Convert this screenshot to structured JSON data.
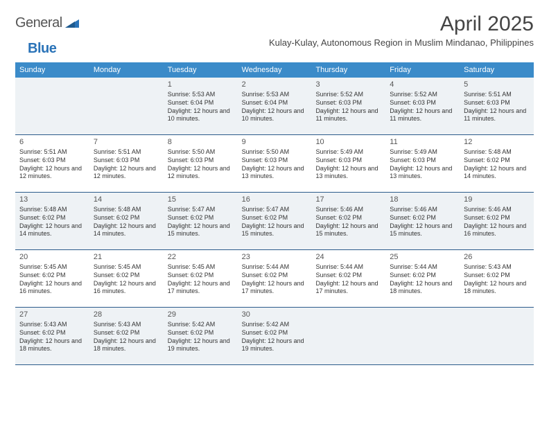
{
  "logo": {
    "word1": "General",
    "word2": "Blue"
  },
  "title": "April 2025",
  "location": "Kulay-Kulay, Autonomous Region in Muslim Mindanao, Philippines",
  "colors": {
    "header_bg": "#3b8bc9",
    "row_border": "#2a5a8a",
    "shaded_bg": "#eef2f5",
    "logo_accent": "#2a73b8"
  },
  "weekdays": [
    "Sunday",
    "Monday",
    "Tuesday",
    "Wednesday",
    "Thursday",
    "Friday",
    "Saturday"
  ],
  "weeks": [
    [
      {
        "day": "",
        "sunrise": "",
        "sunset": "",
        "daylight": ""
      },
      {
        "day": "",
        "sunrise": "",
        "sunset": "",
        "daylight": ""
      },
      {
        "day": "1",
        "sunrise": "Sunrise: 5:53 AM",
        "sunset": "Sunset: 6:04 PM",
        "daylight": "Daylight: 12 hours and 10 minutes."
      },
      {
        "day": "2",
        "sunrise": "Sunrise: 5:53 AM",
        "sunset": "Sunset: 6:04 PM",
        "daylight": "Daylight: 12 hours and 10 minutes."
      },
      {
        "day": "3",
        "sunrise": "Sunrise: 5:52 AM",
        "sunset": "Sunset: 6:03 PM",
        "daylight": "Daylight: 12 hours and 11 minutes."
      },
      {
        "day": "4",
        "sunrise": "Sunrise: 5:52 AM",
        "sunset": "Sunset: 6:03 PM",
        "daylight": "Daylight: 12 hours and 11 minutes."
      },
      {
        "day": "5",
        "sunrise": "Sunrise: 5:51 AM",
        "sunset": "Sunset: 6:03 PM",
        "daylight": "Daylight: 12 hours and 11 minutes."
      }
    ],
    [
      {
        "day": "6",
        "sunrise": "Sunrise: 5:51 AM",
        "sunset": "Sunset: 6:03 PM",
        "daylight": "Daylight: 12 hours and 12 minutes."
      },
      {
        "day": "7",
        "sunrise": "Sunrise: 5:51 AM",
        "sunset": "Sunset: 6:03 PM",
        "daylight": "Daylight: 12 hours and 12 minutes."
      },
      {
        "day": "8",
        "sunrise": "Sunrise: 5:50 AM",
        "sunset": "Sunset: 6:03 PM",
        "daylight": "Daylight: 12 hours and 12 minutes."
      },
      {
        "day": "9",
        "sunrise": "Sunrise: 5:50 AM",
        "sunset": "Sunset: 6:03 PM",
        "daylight": "Daylight: 12 hours and 13 minutes."
      },
      {
        "day": "10",
        "sunrise": "Sunrise: 5:49 AM",
        "sunset": "Sunset: 6:03 PM",
        "daylight": "Daylight: 12 hours and 13 minutes."
      },
      {
        "day": "11",
        "sunrise": "Sunrise: 5:49 AM",
        "sunset": "Sunset: 6:03 PM",
        "daylight": "Daylight: 12 hours and 13 minutes."
      },
      {
        "day": "12",
        "sunrise": "Sunrise: 5:48 AM",
        "sunset": "Sunset: 6:02 PM",
        "daylight": "Daylight: 12 hours and 14 minutes."
      }
    ],
    [
      {
        "day": "13",
        "sunrise": "Sunrise: 5:48 AM",
        "sunset": "Sunset: 6:02 PM",
        "daylight": "Daylight: 12 hours and 14 minutes."
      },
      {
        "day": "14",
        "sunrise": "Sunrise: 5:48 AM",
        "sunset": "Sunset: 6:02 PM",
        "daylight": "Daylight: 12 hours and 14 minutes."
      },
      {
        "day": "15",
        "sunrise": "Sunrise: 5:47 AM",
        "sunset": "Sunset: 6:02 PM",
        "daylight": "Daylight: 12 hours and 15 minutes."
      },
      {
        "day": "16",
        "sunrise": "Sunrise: 5:47 AM",
        "sunset": "Sunset: 6:02 PM",
        "daylight": "Daylight: 12 hours and 15 minutes."
      },
      {
        "day": "17",
        "sunrise": "Sunrise: 5:46 AM",
        "sunset": "Sunset: 6:02 PM",
        "daylight": "Daylight: 12 hours and 15 minutes."
      },
      {
        "day": "18",
        "sunrise": "Sunrise: 5:46 AM",
        "sunset": "Sunset: 6:02 PM",
        "daylight": "Daylight: 12 hours and 15 minutes."
      },
      {
        "day": "19",
        "sunrise": "Sunrise: 5:46 AM",
        "sunset": "Sunset: 6:02 PM",
        "daylight": "Daylight: 12 hours and 16 minutes."
      }
    ],
    [
      {
        "day": "20",
        "sunrise": "Sunrise: 5:45 AM",
        "sunset": "Sunset: 6:02 PM",
        "daylight": "Daylight: 12 hours and 16 minutes."
      },
      {
        "day": "21",
        "sunrise": "Sunrise: 5:45 AM",
        "sunset": "Sunset: 6:02 PM",
        "daylight": "Daylight: 12 hours and 16 minutes."
      },
      {
        "day": "22",
        "sunrise": "Sunrise: 5:45 AM",
        "sunset": "Sunset: 6:02 PM",
        "daylight": "Daylight: 12 hours and 17 minutes."
      },
      {
        "day": "23",
        "sunrise": "Sunrise: 5:44 AM",
        "sunset": "Sunset: 6:02 PM",
        "daylight": "Daylight: 12 hours and 17 minutes."
      },
      {
        "day": "24",
        "sunrise": "Sunrise: 5:44 AM",
        "sunset": "Sunset: 6:02 PM",
        "daylight": "Daylight: 12 hours and 17 minutes."
      },
      {
        "day": "25",
        "sunrise": "Sunrise: 5:44 AM",
        "sunset": "Sunset: 6:02 PM",
        "daylight": "Daylight: 12 hours and 18 minutes."
      },
      {
        "day": "26",
        "sunrise": "Sunrise: 5:43 AM",
        "sunset": "Sunset: 6:02 PM",
        "daylight": "Daylight: 12 hours and 18 minutes."
      }
    ],
    [
      {
        "day": "27",
        "sunrise": "Sunrise: 5:43 AM",
        "sunset": "Sunset: 6:02 PM",
        "daylight": "Daylight: 12 hours and 18 minutes."
      },
      {
        "day": "28",
        "sunrise": "Sunrise: 5:43 AM",
        "sunset": "Sunset: 6:02 PM",
        "daylight": "Daylight: 12 hours and 18 minutes."
      },
      {
        "day": "29",
        "sunrise": "Sunrise: 5:42 AM",
        "sunset": "Sunset: 6:02 PM",
        "daylight": "Daylight: 12 hours and 19 minutes."
      },
      {
        "day": "30",
        "sunrise": "Sunrise: 5:42 AM",
        "sunset": "Sunset: 6:02 PM",
        "daylight": "Daylight: 12 hours and 19 minutes."
      },
      {
        "day": "",
        "sunrise": "",
        "sunset": "",
        "daylight": ""
      },
      {
        "day": "",
        "sunrise": "",
        "sunset": "",
        "daylight": ""
      },
      {
        "day": "",
        "sunrise": "",
        "sunset": "",
        "daylight": ""
      }
    ]
  ]
}
